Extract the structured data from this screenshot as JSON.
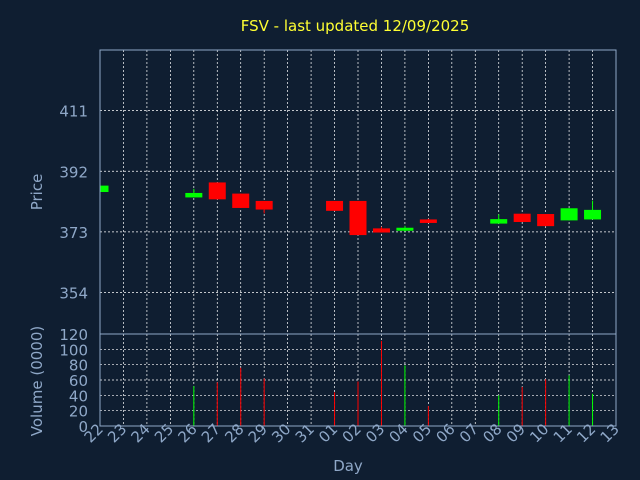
{
  "chart_data": {
    "type": "candlestick",
    "title": "FSV - last updated 12/09/2025",
    "xlabel": "Day",
    "ylabel": "Price",
    "volume_ylabel": "Volume (0000)",
    "x_ticks": [
      "22",
      "23",
      "24",
      "25",
      "26",
      "27",
      "28",
      "29",
      "30",
      "31",
      "01",
      "02",
      "03",
      "04",
      "05",
      "06",
      "07",
      "08",
      "09",
      "10",
      "11",
      "12",
      "13"
    ],
    "price_ticks": [
      354,
      373,
      392,
      411
    ],
    "price_ylim": [
      341,
      430
    ],
    "volume_ticks": [
      0,
      20,
      40,
      60,
      80,
      100,
      120
    ],
    "volume_ylim": [
      0,
      120
    ],
    "grid": true,
    "colors": {
      "up": "#00ff00",
      "down": "#ff0000",
      "title": "#ffff33",
      "axis_text": "#8fa8c8",
      "grid": "#ffffff",
      "background": "#0f1e31"
    },
    "candles": [
      {
        "day": "22",
        "open": 385.5,
        "high": 387.5,
        "low": 385.5,
        "close": 387.5,
        "volume": 0
      },
      {
        "day": "26",
        "open": 383.8,
        "high": 386.5,
        "low": 383.8,
        "close": 385.2,
        "volume": 52
      },
      {
        "day": "27",
        "open": 388.5,
        "high": 388.5,
        "low": 383.2,
        "close": 383.2,
        "volume": 57
      },
      {
        "day": "28",
        "open": 385.0,
        "high": 385.0,
        "low": 380.5,
        "close": 380.5,
        "volume": 76
      },
      {
        "day": "29",
        "open": 382.7,
        "high": 382.7,
        "low": 378.8,
        "close": 380.0,
        "volume": 62
      },
      {
        "day": "01",
        "open": 382.7,
        "high": 382.7,
        "low": 379.6,
        "close": 379.6,
        "volume": 44
      },
      {
        "day": "02",
        "open": 382.7,
        "high": 382.7,
        "low": 372.0,
        "close": 372.0,
        "volume": 58
      },
      {
        "day": "03",
        "open": 374.1,
        "high": 374.6,
        "low": 372.8,
        "close": 372.8,
        "volume": 111
      },
      {
        "day": "04",
        "open": 373.8,
        "high": 374.9,
        "low": 373.1,
        "close": 374.3,
        "volume": 79
      },
      {
        "day": "05",
        "open": 376.9,
        "high": 377.1,
        "low": 375.8,
        "close": 375.8,
        "volume": 26
      },
      {
        "day": "08",
        "open": 375.6,
        "high": 378.5,
        "low": 375.6,
        "close": 377.0,
        "volume": 40
      },
      {
        "day": "09",
        "open": 378.7,
        "high": 378.7,
        "low": 376.1,
        "close": 376.1,
        "volume": 51
      },
      {
        "day": "10",
        "open": 378.6,
        "high": 378.6,
        "low": 374.8,
        "close": 374.8,
        "volume": 61
      },
      {
        "day": "11",
        "open": 376.6,
        "high": 380.4,
        "low": 376.6,
        "close": 380.4,
        "volume": 66
      },
      {
        "day": "12",
        "open": 376.9,
        "high": 382.8,
        "low": 376.9,
        "close": 379.9,
        "volume": 42
      }
    ]
  }
}
